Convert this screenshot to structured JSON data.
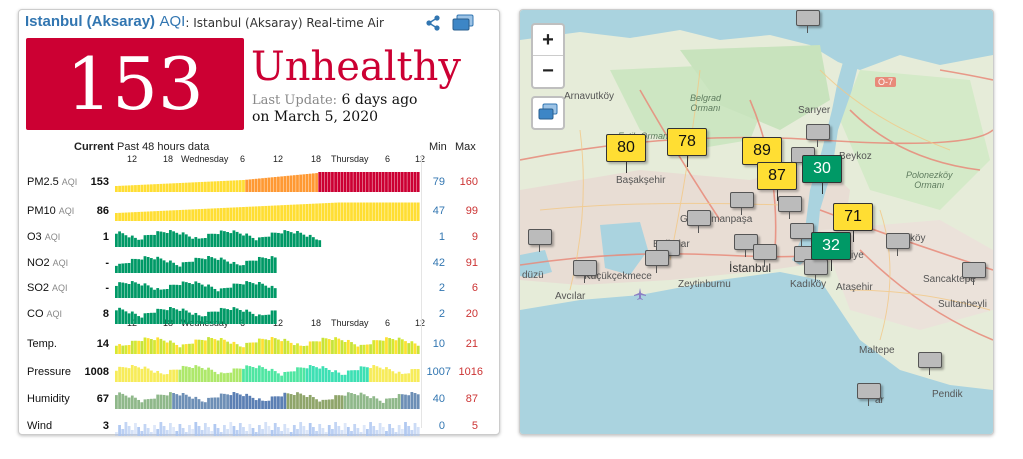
{
  "header": {
    "city": "Istanbul (Aksaray)",
    "aqi_label": "AQI",
    "description": ": Istanbul (Aksaray) Real-time Air Qu"
  },
  "aqi": {
    "value": "153",
    "status": "Unhealthy",
    "last_update_label": "Last Update:",
    "last_update_value": "6 days ago",
    "date": "on March 5, 2020",
    "color": "#cc0033"
  },
  "table": {
    "col_current": "Current",
    "col_history": "Past 48 hours data",
    "col_min": "Min",
    "col_max": "Max",
    "time_ticks": [
      "12",
      "18",
      "Wednesday",
      "6",
      "12",
      "18",
      "Thursday",
      "6",
      "12"
    ],
    "rows": [
      {
        "name": "PM2.5",
        "unit": "AQI",
        "current": "153",
        "min": "79",
        "max": "160"
      },
      {
        "name": "PM10",
        "unit": "AQI",
        "current": "86",
        "min": "47",
        "max": "99"
      },
      {
        "name": "O3",
        "unit": "AQI",
        "current": "1",
        "min": "1",
        "max": "9"
      },
      {
        "name": "NO2",
        "unit": "AQI",
        "current": "-",
        "min": "42",
        "max": "91"
      },
      {
        "name": "SO2",
        "unit": "AQI",
        "current": "-",
        "min": "2",
        "max": "6"
      },
      {
        "name": "CO",
        "unit": "AQI",
        "current": "8",
        "min": "2",
        "max": "20"
      },
      {
        "name": "Temp.",
        "unit": "",
        "current": "14",
        "min": "10",
        "max": "21"
      },
      {
        "name": "Pressure",
        "unit": "",
        "current": "1008",
        "min": "1007",
        "max": "1016"
      },
      {
        "name": "Humidity",
        "unit": "",
        "current": "67",
        "min": "40",
        "max": "87"
      },
      {
        "name": "Wind",
        "unit": "",
        "current": "3",
        "min": "0",
        "max": "5"
      }
    ]
  },
  "map": {
    "zoom_in": "+",
    "zoom_out": "−",
    "places": {
      "arnavutkoy": "Arnavutköy",
      "belgrad": "Belgrad\nOrmanı",
      "fatih_ormani": "Fatih Ormanı",
      "sariyer": "Sarıyer",
      "beykoz": "Beykoz",
      "polonezkoy": "Polonezköy\nOrmanı",
      "basaksehir": "Başakşehir",
      "gaziosmanpasa": "Gaziosmanpaşa",
      "bagcilar": "Bağcılar",
      "istanbul": "İstanbul",
      "zeytinburnu": "Zeytinburnu",
      "kadikoy": "Kadıköy",
      "atasehir": "Ataşehir",
      "sancaktepe": "Sancaktepe",
      "sultanbeyli": "Sultanbeyli",
      "maltepe": "Maltepe",
      "pendik": "Pendik",
      "avcilar": "Avcılar",
      "kucukcekmece": "Küçükçekmece",
      "o7": "O-7",
      "urt": "urt",
      "duzu": "düzü",
      "koy": "köy",
      "iye": "iye",
      "lar": "lar",
      "ar": "ar"
    },
    "markers": [
      "80",
      "78",
      "89",
      "87",
      "30",
      "71",
      "32"
    ],
    "marker_colors": {
      "moderate": "#ffde33",
      "good": "#009966"
    }
  }
}
